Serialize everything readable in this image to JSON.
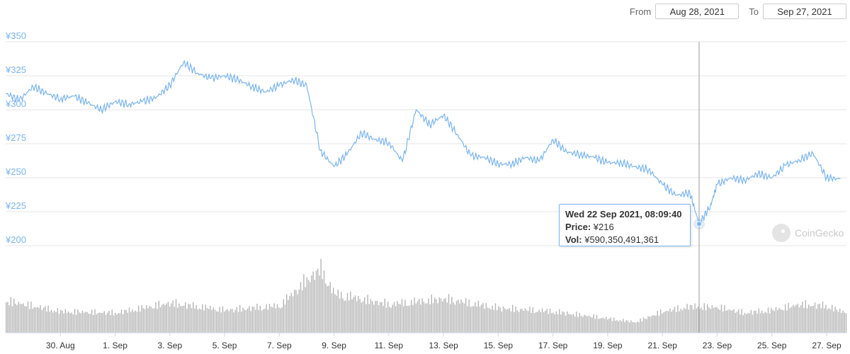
{
  "range": {
    "from_label": "From",
    "from_value": "Aug 28, 2021",
    "to_label": "To",
    "to_value": "Sep 27, 2021"
  },
  "tooltip": {
    "date": "Wed 22 Sep 2021, 08:09:40",
    "price_label": "Price:",
    "price_value": "¥216",
    "vol_label": "Vol:",
    "vol_value": "¥590,350,491,361"
  },
  "watermark": {
    "text": "CoinGecko"
  },
  "colors": {
    "line": "#7cb5ec",
    "volume": "#b5b5b5",
    "grid": "#e6e6e6",
    "crosshair": "#999999"
  },
  "chart_data": {
    "type": "line",
    "title": "",
    "xlabel": "",
    "ylabel": "",
    "ylim": [
      200,
      350
    ],
    "yticks": [
      "¥200",
      "¥225",
      "¥250",
      "¥275",
      "¥300",
      "¥325",
      "¥350"
    ],
    "ytick_values": [
      200,
      225,
      250,
      275,
      300,
      325,
      350
    ],
    "xlim": [
      "2021-08-28",
      "2021-09-27"
    ],
    "xtick_labels": [
      "30. Aug",
      "1. Sep",
      "3. Sep",
      "5. Sep",
      "7. Sep",
      "9. Sep",
      "11. Sep",
      "13. Sep",
      "15. Sep",
      "17. Sep",
      "19. Sep",
      "21. Sep",
      "23. Sep",
      "25. Sep",
      "27. Sep"
    ],
    "xtick_dates": [
      "2021-08-30",
      "2021-09-01",
      "2021-09-03",
      "2021-09-05",
      "2021-09-07",
      "2021-09-09",
      "2021-09-11",
      "2021-09-13",
      "2021-09-15",
      "2021-09-17",
      "2021-09-19",
      "2021-09-21",
      "2021-09-23",
      "2021-09-25",
      "2021-09-27"
    ],
    "series": [
      {
        "name": "Price",
        "x": [
          "2021-08-28",
          "2021-08-28 12:00",
          "2021-08-29",
          "2021-08-29 12:00",
          "2021-08-30",
          "2021-08-30 12:00",
          "2021-08-31",
          "2021-08-31 12:00",
          "2021-09-01",
          "2021-09-01 12:00",
          "2021-09-02",
          "2021-09-02 12:00",
          "2021-09-03",
          "2021-09-03 12:00",
          "2021-09-04",
          "2021-09-04 12:00",
          "2021-09-05",
          "2021-09-05 12:00",
          "2021-09-06",
          "2021-09-06 12:00",
          "2021-09-07",
          "2021-09-07 12:00",
          "2021-09-08",
          "2021-09-08 12:00",
          "2021-09-09",
          "2021-09-09 12:00",
          "2021-09-10",
          "2021-09-10 12:00",
          "2021-09-11",
          "2021-09-11 12:00",
          "2021-09-12",
          "2021-09-12 12:00",
          "2021-09-13",
          "2021-09-13 12:00",
          "2021-09-14",
          "2021-09-14 12:00",
          "2021-09-15",
          "2021-09-15 12:00",
          "2021-09-16",
          "2021-09-16 12:00",
          "2021-09-17",
          "2021-09-17 12:00",
          "2021-09-18",
          "2021-09-18 12:00",
          "2021-09-19",
          "2021-09-19 12:00",
          "2021-09-20",
          "2021-09-20 12:00",
          "2021-09-21",
          "2021-09-21 12:00",
          "2021-09-22",
          "2021-09-22 08:10",
          "2021-09-22 18:00",
          "2021-09-23",
          "2021-09-23 12:00",
          "2021-09-24",
          "2021-09-24 12:00",
          "2021-09-25",
          "2021-09-25 12:00",
          "2021-09-26",
          "2021-09-26 12:00",
          "2021-09-27",
          "2021-09-27 12:00"
        ],
        "y": [
          312,
          307,
          317,
          312,
          308,
          310,
          305,
          300,
          306,
          304,
          306,
          309,
          318,
          335,
          327,
          323,
          325,
          322,
          317,
          313,
          318,
          322,
          318,
          270,
          258,
          268,
          283,
          278,
          276,
          262,
          300,
          289,
          296,
          282,
          266,
          265,
          260,
          260,
          265,
          262,
          278,
          269,
          267,
          265,
          261,
          261,
          258,
          256,
          245,
          237,
          239,
          216,
          229,
          245,
          250,
          248,
          253,
          250,
          259,
          263,
          268,
          250,
          249
        ]
      }
    ],
    "volume": {
      "note": "volume bars, relative heights",
      "x": [
        "2021-08-28",
        "2021-08-30",
        "2021-09-01",
        "2021-09-03",
        "2021-09-05",
        "2021-09-07",
        "2021-09-08",
        "2021-09-08 12:00",
        "2021-09-09",
        "2021-09-11",
        "2021-09-13",
        "2021-09-15",
        "2021-09-17",
        "2021-09-19",
        "2021-09-20",
        "2021-09-21",
        "2021-09-22",
        "2021-09-23",
        "2021-09-24",
        "2021-09-25",
        "2021-09-26",
        "2021-09-27",
        "2021-09-27 12:00"
      ],
      "values": [
        0.45,
        0.3,
        0.28,
        0.42,
        0.32,
        0.38,
        0.75,
        0.9,
        0.55,
        0.4,
        0.48,
        0.35,
        0.3,
        0.2,
        0.15,
        0.3,
        0.37,
        0.36,
        0.28,
        0.32,
        0.4,
        0.38,
        0.3
      ]
    },
    "highlight": {
      "x": "2021-09-22 08:10",
      "y": 216
    },
    "grid": true,
    "legend": "none"
  }
}
